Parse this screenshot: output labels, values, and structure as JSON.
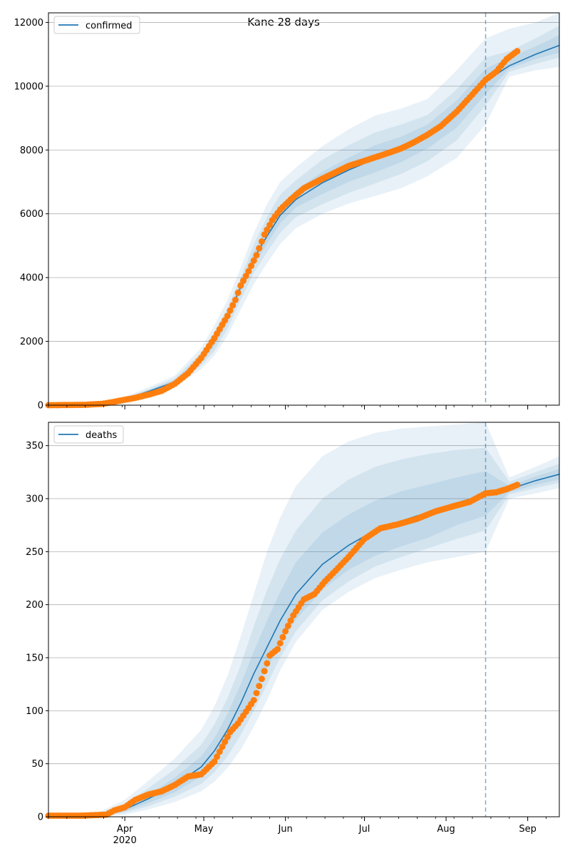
{
  "figure": {
    "title": "Kane 28 days"
  },
  "colors": {
    "model_line": "#1f77b4",
    "observed_points": "#ff7f0e",
    "band": "#1f77b4",
    "grid": "#b0b0b0",
    "forecast_marker": "#1f77b4"
  },
  "chart_data": [
    {
      "type": "line",
      "name": "confirmed-panel",
      "legend": "confirmed",
      "legend_position": "top-left",
      "grid": "horizontal",
      "x_range": [
        "2020-03-03",
        "2020-09-13"
      ],
      "ylim": [
        0,
        12300
      ],
      "yticks": [
        0,
        2000,
        4000,
        6000,
        8000,
        10000,
        12000
      ],
      "forecast_start": "2020-08-16",
      "observed_end": "2020-08-28",
      "model": {
        "x": [
          "2020-03-03",
          "2020-03-21",
          "2020-04-01",
          "2020-04-10",
          "2020-04-20",
          "2020-04-30",
          "2020-05-05",
          "2020-05-10",
          "2020-05-15",
          "2020-05-20",
          "2020-05-25",
          "2020-05-30",
          "2020-06-05",
          "2020-06-15",
          "2020-06-25",
          "2020-07-05",
          "2020-07-15",
          "2020-07-25",
          "2020-08-05",
          "2020-08-16",
          "2020-08-25",
          "2020-09-04",
          "2020-09-13"
        ],
        "y": [
          0,
          40,
          190,
          430,
          730,
          1450,
          2000,
          2750,
          3700,
          4600,
          5300,
          5950,
          6450,
          6970,
          7370,
          7720,
          8020,
          8420,
          9130,
          10150,
          10640,
          11000,
          11280
        ]
      },
      "bands": [
        {
          "level": "outer",
          "upper": [
            0,
            60,
            260,
            560,
            930,
            1800,
            2500,
            3300,
            4300,
            5400,
            6300,
            7000,
            7450,
            8120,
            8650,
            9080,
            9300,
            9600,
            10500,
            11500,
            11800,
            12000,
            12300
          ],
          "lower": [
            0,
            25,
            130,
            320,
            560,
            1130,
            1550,
            2180,
            3000,
            3800,
            4450,
            5050,
            5550,
            6000,
            6320,
            6560,
            6800,
            7180,
            7750,
            8800,
            10300,
            10500,
            10600
          ]
        },
        {
          "level": "middle",
          "upper": [
            0,
            50,
            230,
            500,
            840,
            1650,
            2300,
            3050,
            4000,
            5050,
            5900,
            6600,
            7050,
            7700,
            8150,
            8550,
            8800,
            9100,
            9900,
            10900,
            11100,
            11500,
            11900
          ],
          "lower": [
            0,
            30,
            150,
            370,
            620,
            1250,
            1700,
            2400,
            3300,
            4150,
            4800,
            5400,
            5900,
            6300,
            6650,
            6950,
            7250,
            7650,
            8300,
            9400,
            10450,
            10700,
            10900
          ]
        },
        {
          "level": "inner",
          "upper": [
            0,
            45,
            210,
            470,
            790,
            1550,
            2150,
            2900,
            3850,
            4800,
            5600,
            6250,
            6750,
            7320,
            7760,
            8150,
            8420,
            8800,
            9550,
            10550,
            10900,
            11250,
            11600
          ],
          "lower": [
            0,
            35,
            170,
            400,
            670,
            1350,
            1850,
            2600,
            3550,
            4400,
            5050,
            5700,
            6200,
            6620,
            7000,
            7300,
            7620,
            8050,
            8700,
            9750,
            10550,
            10850,
            11050
          ]
        }
      ],
      "observed": {
        "x": [
          "2020-03-03",
          "2020-03-10",
          "2020-03-17",
          "2020-03-23",
          "2020-03-27",
          "2020-04-01",
          "2020-04-05",
          "2020-04-10",
          "2020-04-15",
          "2020-04-20",
          "2020-04-25",
          "2020-04-30",
          "2020-05-05",
          "2020-05-10",
          "2020-05-13",
          "2020-05-15",
          "2020-05-18",
          "2020-05-21",
          "2020-05-24",
          "2020-05-27",
          "2020-05-30",
          "2020-06-03",
          "2020-06-08",
          "2020-06-15",
          "2020-06-20",
          "2020-06-25",
          "2020-07-01",
          "2020-07-08",
          "2020-07-15",
          "2020-07-20",
          "2020-07-25",
          "2020-07-30",
          "2020-08-05",
          "2020-08-10",
          "2020-08-16",
          "2020-08-20",
          "2020-08-24",
          "2020-08-28"
        ],
        "y": [
          0,
          5,
          12,
          40,
          90,
          170,
          230,
          330,
          450,
          670,
          1000,
          1480,
          2100,
          2800,
          3300,
          3750,
          4200,
          4700,
          5350,
          5800,
          6130,
          6450,
          6800,
          7100,
          7300,
          7500,
          7660,
          7850,
          8050,
          8250,
          8480,
          8750,
          9200,
          9650,
          10200,
          10450,
          10850,
          11100
        ]
      }
    },
    {
      "type": "line",
      "name": "deaths-panel",
      "legend": "deaths",
      "legend_position": "top-left",
      "grid": "horizontal",
      "x_range": [
        "2020-03-03",
        "2020-09-13"
      ],
      "ylim": [
        0,
        372
      ],
      "yticks": [
        0,
        50,
        100,
        150,
        200,
        250,
        300,
        350
      ],
      "forecast_start": "2020-08-16",
      "observed_end": "2020-08-28",
      "xticks": [
        "Apr",
        "May",
        "Jun",
        "Jul",
        "Aug",
        "Sep"
      ],
      "xtick_dates": [
        "2020-04-01",
        "2020-05-01",
        "2020-06-01",
        "2020-07-01",
        "2020-08-01",
        "2020-09-01"
      ],
      "year_label": "2020",
      "model": {
        "x": [
          "2020-03-03",
          "2020-03-21",
          "2020-04-01",
          "2020-04-10",
          "2020-04-20",
          "2020-04-30",
          "2020-05-05",
          "2020-05-10",
          "2020-05-15",
          "2020-05-20",
          "2020-05-25",
          "2020-05-30",
          "2020-06-05",
          "2020-06-15",
          "2020-06-25",
          "2020-07-05",
          "2020-07-15",
          "2020-07-25",
          "2020-08-05",
          "2020-08-16",
          "2020-08-25",
          "2020-09-04",
          "2020-09-13"
        ],
        "y": [
          0,
          1,
          7,
          17,
          30,
          47,
          62,
          82,
          107,
          135,
          160,
          185,
          210,
          238,
          256,
          270,
          279,
          287,
          296,
          304,
          309,
          317,
          323
        ]
      },
      "bands": [
        {
          "level": "outer",
          "upper": [
            0,
            3,
            16,
            34,
            55,
            82,
            104,
            133,
            170,
            210,
            250,
            282,
            312,
            340,
            354,
            362,
            366,
            368,
            370,
            372,
            320,
            330,
            340
          ],
          "lower": [
            0,
            0,
            2,
            7,
            14,
            24,
            33,
            46,
            63,
            85,
            110,
            138,
            165,
            195,
            212,
            225,
            233,
            240,
            245,
            250,
            300,
            305,
            310
          ]
        },
        {
          "level": "middle",
          "upper": [
            0,
            2,
            12,
            27,
            45,
            68,
            87,
            112,
            143,
            180,
            214,
            243,
            270,
            300,
            318,
            330,
            337,
            342,
            346,
            348,
            316,
            325,
            333
          ],
          "lower": [
            0,
            0,
            4,
            10,
            19,
            31,
            42,
            57,
            77,
            100,
            125,
            150,
            175,
            204,
            222,
            236,
            245,
            253,
            262,
            270,
            304,
            310,
            315
          ]
        },
        {
          "level": "inner",
          "upper": [
            0,
            1,
            9,
            21,
            37,
            57,
            74,
            97,
            125,
            156,
            185,
            212,
            240,
            268,
            285,
            298,
            307,
            313,
            320,
            326,
            312,
            321,
            328
          ],
          "lower": [
            0,
            0,
            5,
            13,
            23,
            38,
            51,
            68,
            90,
            116,
            140,
            163,
            186,
            214,
            233,
            246,
            255,
            263,
            275,
            284,
            306,
            313,
            318
          ]
        }
      ],
      "observed": {
        "x": [
          "2020-03-03",
          "2020-03-15",
          "2020-03-25",
          "2020-03-28",
          "2020-04-01",
          "2020-04-05",
          "2020-04-10",
          "2020-04-15",
          "2020-04-20",
          "2020-04-25",
          "2020-04-30",
          "2020-05-05",
          "2020-05-08",
          "2020-05-11",
          "2020-05-14",
          "2020-05-17",
          "2020-05-20",
          "2020-05-23",
          "2020-05-26",
          "2020-05-29",
          "2020-06-01",
          "2020-06-04",
          "2020-06-08",
          "2020-06-12",
          "2020-06-16",
          "2020-06-20",
          "2020-06-25",
          "2020-07-01",
          "2020-07-07",
          "2020-07-14",
          "2020-07-21",
          "2020-07-28",
          "2020-08-04",
          "2020-08-10",
          "2020-08-16",
          "2020-08-20",
          "2020-08-24",
          "2020-08-28"
        ],
        "y": [
          1,
          1,
          2,
          6,
          9,
          16,
          21,
          24,
          30,
          38,
          40,
          52,
          66,
          80,
          88,
          99,
          110,
          130,
          152,
          158,
          175,
          190,
          205,
          210,
          222,
          232,
          245,
          262,
          272,
          276,
          281,
          288,
          293,
          297,
          305,
          306,
          309,
          313
        ]
      }
    }
  ]
}
